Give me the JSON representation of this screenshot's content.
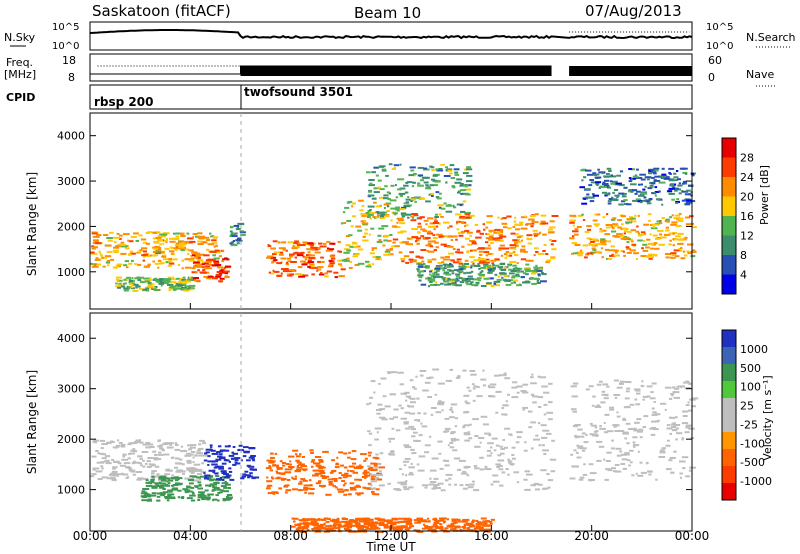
{
  "header": {
    "station": "Saskatoon (fitACF)",
    "beam": "Beam 10",
    "date": "07/Aug/2013"
  },
  "noise_panel": {
    "left_label": "N.Sky",
    "left_ticks": [
      "10^5",
      "10^0"
    ],
    "right_ticks": [
      "10^5",
      "10^0"
    ],
    "right_label": "N.Search"
  },
  "freq_panel": {
    "left_label_1": "Freq.",
    "left_label_2": "[MHz]",
    "left_ticks": [
      "18",
      "8"
    ],
    "right_ticks": [
      "60",
      "0"
    ],
    "right_label": "Nave"
  },
  "cpid_panel": {
    "label": "CPID",
    "modes": [
      {
        "name": "rbsp 200",
        "start_hour": 0
      },
      {
        "name": "twofsound 3501",
        "start_hour": 6
      }
    ]
  },
  "colors": {
    "power": [
      "#0000e6",
      "#2850b4",
      "#3c8c6e",
      "#50b450",
      "#ffc800",
      "#ff8c00",
      "#ff3c00",
      "#e60000"
    ],
    "velocity": [
      "#2030c0",
      "#3c64b4",
      "#3c9650",
      "#50c83c",
      "#bebebe",
      "#bebebe",
      "#ff9600",
      "#ff6400",
      "#ff3c00",
      "#e60000"
    ]
  },
  "chart_data": [
    {
      "type": "heatmap",
      "panel": "power",
      "ylabel": "Slant Range [km]",
      "ylim": [
        180,
        4500
      ],
      "xlim": [
        0,
        24
      ],
      "yticks": [
        "1000",
        "2000",
        "3000",
        "4000"
      ],
      "colorbar_label": "Power [dB]",
      "colorbar_ticks": [
        "28",
        "24",
        "20",
        "16",
        "12",
        "8",
        "4"
      ],
      "colorbar_range": [
        0,
        32
      ],
      "data_gap_hours": [
        18.4,
        19.1
      ],
      "regions": [
        {
          "t": [
            0.0,
            5.0
          ],
          "range": [
            1100,
            1900
          ],
          "value": 20
        },
        {
          "t": [
            1.0,
            4.0
          ],
          "range": [
            600,
            900
          ],
          "value": 14
        },
        {
          "t": [
            4.0,
            5.5
          ],
          "range": [
            800,
            1500
          ],
          "value": 26
        },
        {
          "t": [
            5.5,
            6.0
          ],
          "range": [
            1600,
            2100
          ],
          "value": 10
        },
        {
          "t": [
            7.0,
            10.0
          ],
          "range": [
            900,
            1700
          ],
          "value": 24
        },
        {
          "t": [
            10.0,
            12.0
          ],
          "range": [
            1100,
            2600
          ],
          "value": 18
        },
        {
          "t": [
            11.0,
            15.0
          ],
          "range": [
            2200,
            3400
          ],
          "value": 12
        },
        {
          "t": [
            12.0,
            18.4
          ],
          "range": [
            1200,
            2300
          ],
          "value": 22
        },
        {
          "t": [
            13.0,
            18.0
          ],
          "range": [
            700,
            1200
          ],
          "value": 12
        },
        {
          "t": [
            19.1,
            24.0
          ],
          "range": [
            1300,
            2300
          ],
          "value": 20
        },
        {
          "t": [
            19.5,
            24.0
          ],
          "range": [
            2500,
            3300
          ],
          "value": 8
        }
      ]
    },
    {
      "type": "heatmap",
      "panel": "velocity",
      "ylabel": "Slant Range [km]",
      "ylim": [
        180,
        4500
      ],
      "xlim": [
        0,
        24
      ],
      "yticks": [
        "1000",
        "2000",
        "3000",
        "4000"
      ],
      "colorbar_label": "Velocity [m s⁻¹]",
      "colorbar_ticks": [
        "1000",
        "500",
        "100",
        "25",
        "-25",
        "-100",
        "-500",
        "-1000"
      ],
      "data_gap_hours": [
        18.4,
        19.1
      ],
      "regions": [
        {
          "t": [
            0.0,
            4.5
          ],
          "range": [
            1200,
            2000
          ],
          "value": 0
        },
        {
          "t": [
            2.0,
            5.5
          ],
          "range": [
            800,
            1300
          ],
          "value": 150
        },
        {
          "t": [
            4.5,
            6.5
          ],
          "range": [
            1200,
            1900
          ],
          "value": 600
        },
        {
          "t": [
            7.0,
            11.5
          ],
          "range": [
            900,
            1800
          ],
          "value": -400
        },
        {
          "t": [
            11.0,
            18.4
          ],
          "range": [
            1000,
            3400
          ],
          "value": 0
        },
        {
          "t": [
            8.0,
            16.0
          ],
          "range": [
            180,
            450
          ],
          "value": -150
        },
        {
          "t": [
            19.1,
            24.0
          ],
          "range": [
            1200,
            3200
          ],
          "value": 0
        }
      ],
      "xlabel": "Time UT",
      "xticks": [
        "00:00",
        "04:00",
        "08:00",
        "12:00",
        "16:00",
        "20:00",
        "00:00"
      ]
    }
  ]
}
